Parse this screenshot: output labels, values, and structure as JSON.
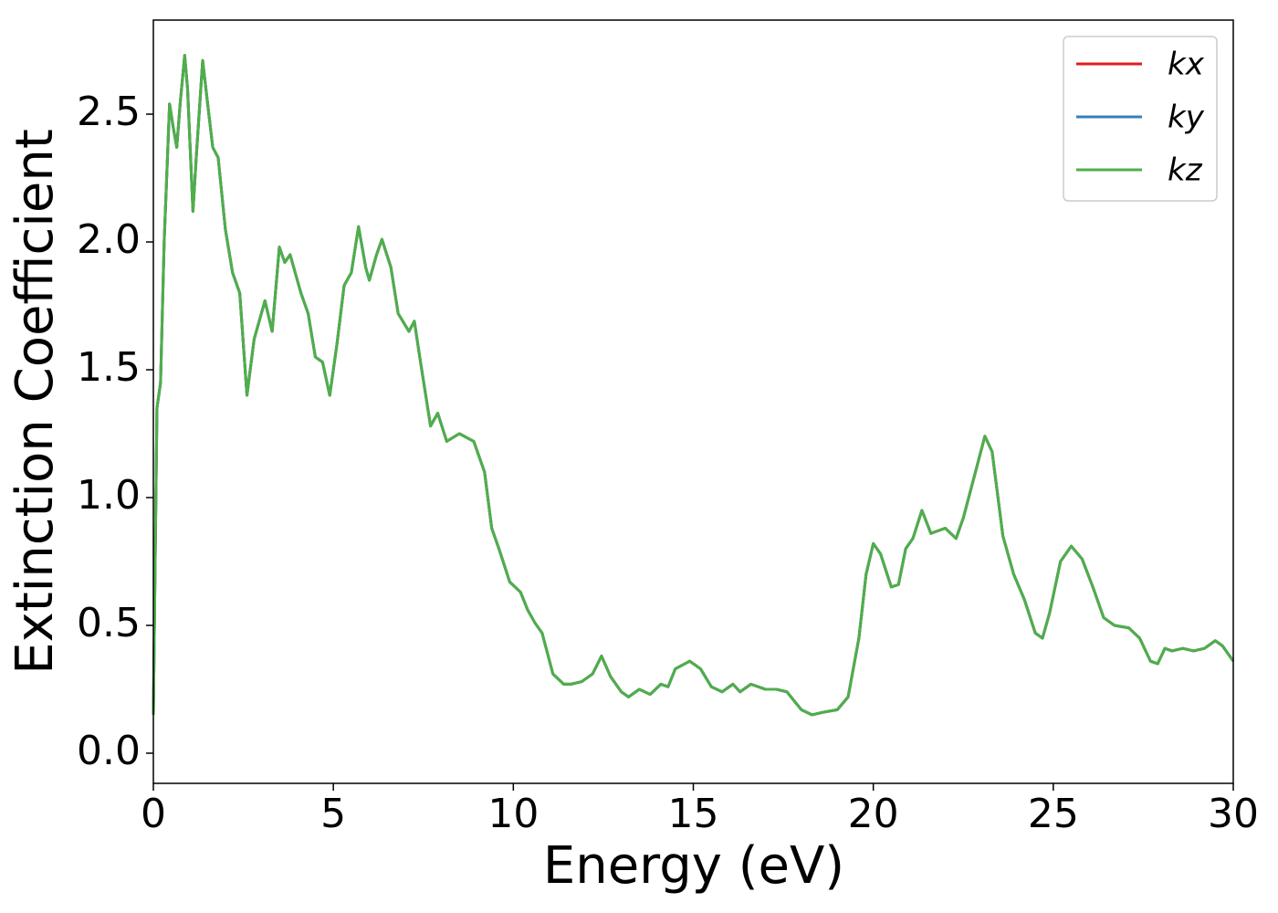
{
  "chart_data": {
    "type": "line",
    "xlabel": "Energy (eV)",
    "ylabel": "Extinction Coefficient",
    "x": [
      0.0,
      0.1,
      0.2,
      0.3,
      0.45,
      0.55,
      0.65,
      0.75,
      0.87,
      0.95,
      1.1,
      1.2,
      1.37,
      1.5,
      1.65,
      1.8,
      2.0,
      2.2,
      2.4,
      2.6,
      2.8,
      3.1,
      3.3,
      3.5,
      3.65,
      3.8,
      4.1,
      4.3,
      4.5,
      4.7,
      4.9,
      5.1,
      5.3,
      5.5,
      5.7,
      5.9,
      6.0,
      6.2,
      6.35,
      6.6,
      6.8,
      7.1,
      7.25,
      7.4,
      7.7,
      7.9,
      8.15,
      8.5,
      8.9,
      9.2,
      9.4,
      9.6,
      9.9,
      10.2,
      10.4,
      10.6,
      10.8,
      11.1,
      11.4,
      11.6,
      11.9,
      12.2,
      12.45,
      12.7,
      13.0,
      13.2,
      13.5,
      13.8,
      14.1,
      14.3,
      14.5,
      14.9,
      15.2,
      15.5,
      15.8,
      16.1,
      16.3,
      16.6,
      17.0,
      17.3,
      17.6,
      18.0,
      18.3,
      18.6,
      19.0,
      19.3,
      19.6,
      19.8,
      20.0,
      20.2,
      20.5,
      20.7,
      20.9,
      21.1,
      21.35,
      21.6,
      21.8,
      22.0,
      22.3,
      22.5,
      22.8,
      23.1,
      23.3,
      23.6,
      23.9,
      24.2,
      24.5,
      24.7,
      24.9,
      25.2,
      25.5,
      25.8,
      26.1,
      26.4,
      26.7,
      27.1,
      27.4,
      27.7,
      27.9,
      28.1,
      28.3,
      28.6,
      28.9,
      29.2,
      29.5,
      29.7,
      30.0
    ],
    "series": [
      {
        "name": "kx",
        "color": "#e41a1c",
        "values": [
          0.15,
          1.35,
          1.45,
          2.0,
          2.54,
          2.45,
          2.37,
          2.55,
          2.73,
          2.6,
          2.12,
          2.35,
          2.71,
          2.55,
          2.37,
          2.33,
          2.05,
          1.88,
          1.8,
          1.4,
          1.62,
          1.77,
          1.65,
          1.98,
          1.92,
          1.95,
          1.8,
          1.72,
          1.55,
          1.53,
          1.4,
          1.6,
          1.83,
          1.88,
          2.06,
          1.9,
          1.85,
          1.95,
          2.01,
          1.9,
          1.72,
          1.65,
          1.69,
          1.55,
          1.28,
          1.33,
          1.22,
          1.25,
          1.22,
          1.1,
          0.88,
          0.8,
          0.67,
          0.63,
          0.56,
          0.51,
          0.47,
          0.31,
          0.27,
          0.27,
          0.28,
          0.31,
          0.38,
          0.3,
          0.24,
          0.22,
          0.25,
          0.23,
          0.27,
          0.26,
          0.33,
          0.36,
          0.33,
          0.26,
          0.24,
          0.27,
          0.24,
          0.27,
          0.25,
          0.25,
          0.24,
          0.17,
          0.15,
          0.16,
          0.17,
          0.22,
          0.45,
          0.7,
          0.82,
          0.78,
          0.65,
          0.66,
          0.8,
          0.84,
          0.95,
          0.86,
          0.87,
          0.88,
          0.84,
          0.92,
          1.08,
          1.24,
          1.18,
          0.85,
          0.7,
          0.6,
          0.47,
          0.45,
          0.55,
          0.75,
          0.81,
          0.76,
          0.65,
          0.53,
          0.5,
          0.49,
          0.45,
          0.36,
          0.35,
          0.41,
          0.4,
          0.41,
          0.4,
          0.41,
          0.44,
          0.42,
          0.36
        ]
      },
      {
        "name": "ky",
        "color": "#377eb8",
        "values": [
          0.15,
          1.35,
          1.45,
          2.0,
          2.54,
          2.45,
          2.37,
          2.55,
          2.73,
          2.6,
          2.12,
          2.35,
          2.71,
          2.55,
          2.37,
          2.33,
          2.05,
          1.88,
          1.8,
          1.4,
          1.62,
          1.77,
          1.65,
          1.98,
          1.92,
          1.95,
          1.8,
          1.72,
          1.55,
          1.53,
          1.4,
          1.6,
          1.83,
          1.88,
          2.06,
          1.9,
          1.85,
          1.95,
          2.01,
          1.9,
          1.72,
          1.65,
          1.69,
          1.55,
          1.28,
          1.33,
          1.22,
          1.25,
          1.22,
          1.1,
          0.88,
          0.8,
          0.67,
          0.63,
          0.56,
          0.51,
          0.47,
          0.31,
          0.27,
          0.27,
          0.28,
          0.31,
          0.38,
          0.3,
          0.24,
          0.22,
          0.25,
          0.23,
          0.27,
          0.26,
          0.33,
          0.36,
          0.33,
          0.26,
          0.24,
          0.27,
          0.24,
          0.27,
          0.25,
          0.25,
          0.24,
          0.17,
          0.15,
          0.16,
          0.17,
          0.22,
          0.45,
          0.7,
          0.82,
          0.78,
          0.65,
          0.66,
          0.8,
          0.84,
          0.95,
          0.86,
          0.87,
          0.88,
          0.84,
          0.92,
          1.08,
          1.24,
          1.18,
          0.85,
          0.7,
          0.6,
          0.47,
          0.45,
          0.55,
          0.75,
          0.81,
          0.76,
          0.65,
          0.53,
          0.5,
          0.49,
          0.45,
          0.36,
          0.35,
          0.41,
          0.4,
          0.41,
          0.4,
          0.41,
          0.44,
          0.42,
          0.36
        ]
      },
      {
        "name": "kz",
        "color": "#4daf4a",
        "values": [
          0.15,
          1.35,
          1.45,
          2.0,
          2.54,
          2.45,
          2.37,
          2.55,
          2.73,
          2.6,
          2.12,
          2.35,
          2.71,
          2.55,
          2.37,
          2.33,
          2.05,
          1.88,
          1.8,
          1.4,
          1.62,
          1.77,
          1.65,
          1.98,
          1.92,
          1.95,
          1.8,
          1.72,
          1.55,
          1.53,
          1.4,
          1.6,
          1.83,
          1.88,
          2.06,
          1.9,
          1.85,
          1.95,
          2.01,
          1.9,
          1.72,
          1.65,
          1.69,
          1.55,
          1.28,
          1.33,
          1.22,
          1.25,
          1.22,
          1.1,
          0.88,
          0.8,
          0.67,
          0.63,
          0.56,
          0.51,
          0.47,
          0.31,
          0.27,
          0.27,
          0.28,
          0.31,
          0.38,
          0.3,
          0.24,
          0.22,
          0.25,
          0.23,
          0.27,
          0.26,
          0.33,
          0.36,
          0.33,
          0.26,
          0.24,
          0.27,
          0.24,
          0.27,
          0.25,
          0.25,
          0.24,
          0.17,
          0.15,
          0.16,
          0.17,
          0.22,
          0.45,
          0.7,
          0.82,
          0.78,
          0.65,
          0.66,
          0.8,
          0.84,
          0.95,
          0.86,
          0.87,
          0.88,
          0.84,
          0.92,
          1.08,
          1.24,
          1.18,
          0.85,
          0.7,
          0.6,
          0.47,
          0.45,
          0.55,
          0.75,
          0.81,
          0.76,
          0.65,
          0.53,
          0.5,
          0.49,
          0.45,
          0.36,
          0.35,
          0.41,
          0.4,
          0.41,
          0.4,
          0.41,
          0.44,
          0.42,
          0.36
        ]
      }
    ],
    "xlim": [
      0,
      30
    ],
    "xticks": [
      0,
      5,
      10,
      15,
      20,
      25,
      30
    ],
    "ylim": [
      -0.118,
      2.868
    ],
    "yticks": [
      {
        "value": 0,
        "label": "0.0"
      },
      {
        "value": 0.5,
        "label": "0.5"
      },
      {
        "value": 1,
        "label": "1.0"
      },
      {
        "value": 1.5,
        "label": "1.5"
      },
      {
        "value": 2,
        "label": "2.0"
      },
      {
        "value": 2.5,
        "label": "2.5"
      }
    ],
    "grid": false,
    "legend": "upper right"
  }
}
